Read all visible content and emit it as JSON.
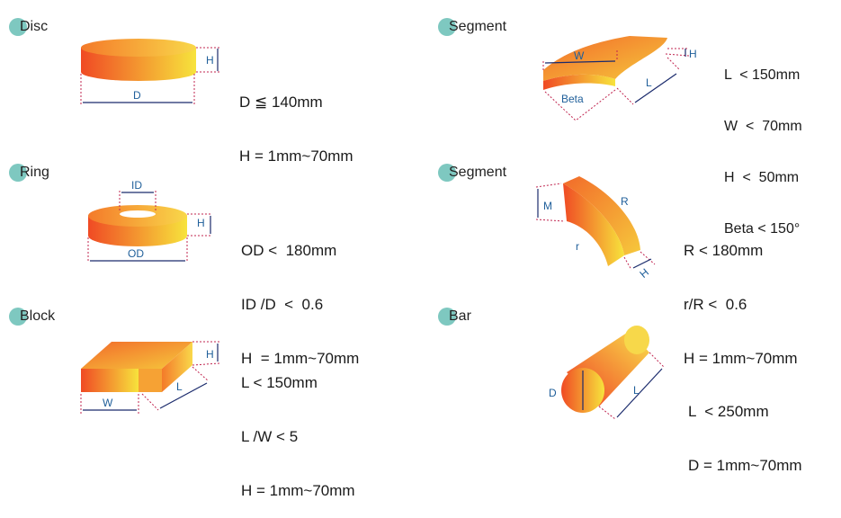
{
  "shapes": [
    {
      "name": "Disc",
      "specs": [
        "D ≦ 140mm",
        "H = 1mm~70mm"
      ],
      "dims": [
        "H",
        "D"
      ]
    },
    {
      "name": "Segment",
      "specs": [
        "L  < 150mm",
        "W  <  70mm",
        "H  <  50mm",
        "Beta < 150°"
      ],
      "dims": [
        "W",
        "H",
        "L",
        "Beta"
      ]
    },
    {
      "name": "Ring",
      "specs": [
        "OD <  180mm",
        "ID /D  <  0.6",
        "H  = 1mm~70mm"
      ],
      "dims": [
        "ID",
        "H",
        "OD"
      ]
    },
    {
      "name": "Segment",
      "specs": [
        "R < 180mm",
        "r/R <  0.6",
        "H = 1mm~70mm"
      ],
      "dims": [
        "M",
        "R",
        "r",
        "H"
      ]
    },
    {
      "name": "Block",
      "specs": [
        "L < 150mm",
        "L /W < 5",
        "H = 1mm~70mm"
      ],
      "dims": [
        "H",
        "W",
        "L"
      ]
    },
    {
      "name": "Bar",
      "specs": [
        "L  < 250mm",
        "D = 1mm~70mm"
      ],
      "dims": [
        "D",
        "L"
      ]
    }
  ],
  "colors": {
    "accent_dot": "#7ec8c0",
    "gradient_start": "#f04a24",
    "gradient_end": "#f7e33c",
    "dimension_line": "#c0244f",
    "label": "#1f5f9a"
  }
}
